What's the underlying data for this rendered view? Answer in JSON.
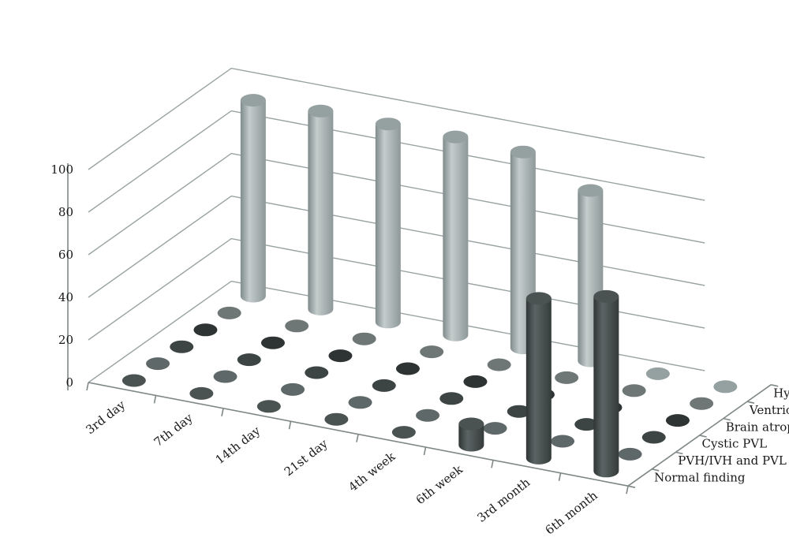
{
  "chart_data": {
    "type": "bar",
    "variant": "3d-cylinder",
    "title": "",
    "xlabel": "",
    "ylabel": "",
    "ylim": [
      0,
      100
    ],
    "yticks": [
      "0",
      "20",
      "40",
      "60",
      "80",
      "100"
    ],
    "categories": [
      "3rd day",
      "7th day",
      "14th day",
      "21st day",
      "4th week",
      "6th week",
      "3rd month",
      "6th month"
    ],
    "series": [
      {
        "name": "Normal finding",
        "color": "#4a5252",
        "values": [
          0,
          0,
          0,
          0,
          0,
          10,
          75,
          82
        ]
      },
      {
        "name": "PVH/IVH and PVL",
        "color": "#5f6868",
        "values": [
          0,
          0,
          0,
          0,
          0,
          0,
          0,
          0
        ]
      },
      {
        "name": "Cystic PVL",
        "color": "#3d4444",
        "values": [
          0,
          0,
          0,
          0,
          0,
          0,
          0,
          0
        ]
      },
      {
        "name": "Brain atrophy",
        "color": "#2e3333",
        "values": [
          0,
          0,
          0,
          0,
          0,
          0,
          0,
          0
        ]
      },
      {
        "name": "Ventriculomegaly",
        "color": "#6e7676",
        "values": [
          0,
          0,
          0,
          0,
          0,
          0,
          0,
          0
        ]
      },
      {
        "name": "Hydrocephalus",
        "color": "#a4aeae",
        "values": [
          92,
          93,
          93,
          93,
          92,
          80,
          0,
          0
        ]
      }
    ],
    "grid": true,
    "legend": "right (depth axis labels)"
  }
}
